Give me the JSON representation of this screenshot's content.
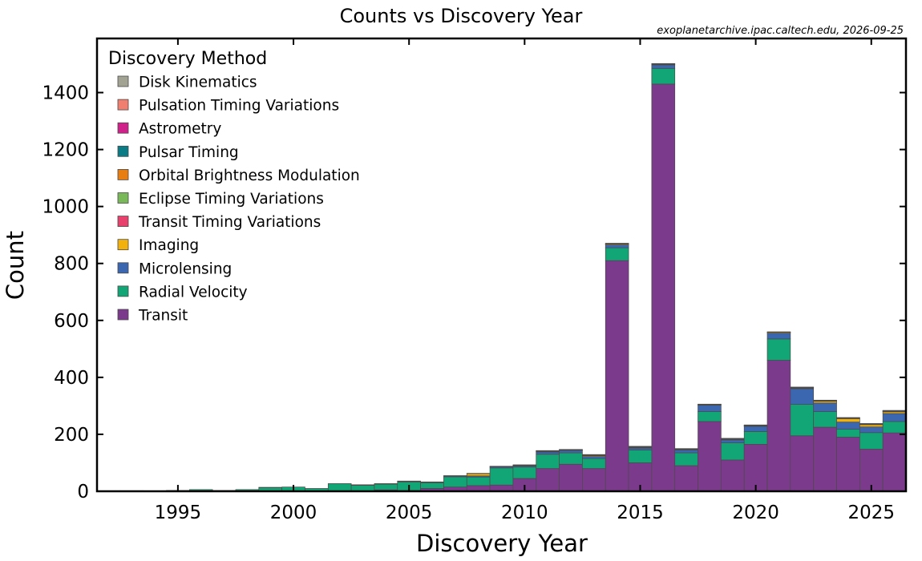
{
  "chart_data": {
    "type": "bar",
    "stacked": true,
    "title": "Counts vs Discovery Year",
    "source_note": "exoplanetarchive.ipac.caltech.edu, 2026-09-25",
    "xlabel": "Discovery Year",
    "ylabel": "Count",
    "xlim": [
      1992,
      2027
    ],
    "ylim": [
      0,
      1590
    ],
    "xticks": [
      1995,
      2000,
      2005,
      2010,
      2015,
      2020,
      2025
    ],
    "yticks": [
      0,
      200,
      400,
      600,
      800,
      1000,
      1200,
      1400
    ],
    "grid": false,
    "legend": {
      "title": "Discovery Method",
      "placement": "top-left"
    },
    "x": [
      1992,
      1993,
      1994,
      1995,
      1996,
      1997,
      1998,
      1999,
      2000,
      2001,
      2002,
      2003,
      2004,
      2005,
      2006,
      2007,
      2008,
      2009,
      2010,
      2011,
      2012,
      2013,
      2014,
      2015,
      2016,
      2017,
      2018,
      2019,
      2020,
      2021,
      2022,
      2023,
      2024,
      2025,
      2026
    ],
    "series": [
      {
        "name": "Transit",
        "color": "#7b3a8c",
        "values": [
          0,
          0,
          0,
          0,
          0,
          0,
          0,
          0,
          0,
          0,
          0,
          1,
          5,
          3,
          10,
          15,
          20,
          22,
          45,
          80,
          95,
          80,
          810,
          100,
          1430,
          90,
          245,
          110,
          165,
          460,
          195,
          225,
          190,
          148,
          205
        ]
      },
      {
        "name": "Radial Velocity",
        "color": "#12a575",
        "values": [
          0,
          1,
          0,
          3,
          6,
          3,
          6,
          13,
          15,
          10,
          27,
          20,
          20,
          30,
          20,
          36,
          30,
          60,
          40,
          50,
          40,
          35,
          45,
          45,
          55,
          45,
          35,
          60,
          45,
          75,
          110,
          55,
          28,
          58,
          40
        ]
      },
      {
        "name": "Microlensing",
        "color": "#3b67b0",
        "values": [
          0,
          0,
          0,
          0,
          0,
          0,
          0,
          0,
          0,
          0,
          0,
          1,
          0,
          2,
          2,
          3,
          4,
          4,
          4,
          8,
          8,
          7,
          10,
          7,
          12,
          10,
          22,
          10,
          18,
          20,
          55,
          30,
          25,
          20,
          28
        ]
      },
      {
        "name": "Imaging",
        "color": "#f2b10d",
        "values": [
          0,
          0,
          0,
          0,
          0,
          0,
          0,
          0,
          0,
          0,
          0,
          0,
          2,
          0,
          1,
          1,
          8,
          1,
          2,
          2,
          1,
          3,
          3,
          2,
          2,
          2,
          2,
          2,
          1,
          3,
          2,
          6,
          12,
          8,
          6
        ]
      },
      {
        "name": "Transit Timing Variations",
        "color": "#e8416d",
        "values": [
          0,
          0,
          0,
          0,
          0,
          0,
          0,
          0,
          0,
          0,
          0,
          0,
          0,
          0,
          0,
          0,
          0,
          0,
          0,
          1,
          1,
          1,
          1,
          1,
          1,
          1,
          1,
          1,
          1,
          1,
          1,
          1,
          1,
          1,
          1
        ]
      },
      {
        "name": "Eclipse Timing Variations",
        "color": "#7ab95a",
        "values": [
          0,
          0,
          0,
          0,
          0,
          0,
          0,
          0,
          0,
          0,
          0,
          0,
          0,
          0,
          0,
          0,
          1,
          1,
          2,
          1,
          1,
          1,
          1,
          1,
          1,
          1,
          1,
          1,
          1,
          1,
          1,
          1,
          1,
          1,
          1
        ]
      },
      {
        "name": "Orbital Brightness Modulation",
        "color": "#e87d12",
        "values": [
          0,
          0,
          0,
          0,
          0,
          0,
          0,
          0,
          0,
          0,
          0,
          0,
          0,
          0,
          0,
          0,
          0,
          0,
          0,
          0,
          0,
          1,
          1,
          1,
          0,
          0,
          0,
          1,
          1,
          0,
          0,
          0,
          0,
          1,
          1
        ]
      },
      {
        "name": "Pulsar Timing",
        "color": "#0a7c86",
        "values": [
          2,
          1,
          1,
          0,
          0,
          0,
          0,
          0,
          0,
          0,
          0,
          1,
          0,
          1,
          0,
          0,
          0,
          0,
          0,
          1,
          1,
          0,
          0,
          1,
          0,
          1,
          0,
          0,
          1,
          0,
          1,
          0,
          1,
          0,
          1
        ]
      },
      {
        "name": "Astrometry",
        "color": "#d0218a",
        "values": [
          0,
          0,
          0,
          0,
          0,
          0,
          0,
          0,
          0,
          0,
          0,
          0,
          0,
          0,
          0,
          0,
          0,
          0,
          0,
          0,
          0,
          1,
          0,
          0,
          0,
          0,
          0,
          1,
          0,
          0,
          1,
          1,
          1,
          1,
          1
        ]
      },
      {
        "name": "Pulsation Timing Variations",
        "color": "#f07f6f",
        "values": [
          0,
          0,
          0,
          0,
          0,
          0,
          0,
          1,
          0,
          0,
          0,
          0,
          0,
          0,
          0,
          0,
          0,
          0,
          0,
          0,
          0,
          0,
          0,
          0,
          1,
          0,
          0,
          0,
          0,
          0,
          0,
          0,
          0,
          0,
          0
        ]
      },
      {
        "name": "Disk Kinematics",
        "color": "#a3a393",
        "values": [
          0,
          0,
          0,
          0,
          0,
          0,
          0,
          0,
          0,
          0,
          0,
          0,
          0,
          0,
          0,
          0,
          0,
          0,
          0,
          0,
          0,
          0,
          0,
          0,
          0,
          0,
          0,
          0,
          0,
          0,
          0,
          1,
          0,
          0,
          0
        ]
      }
    ]
  }
}
